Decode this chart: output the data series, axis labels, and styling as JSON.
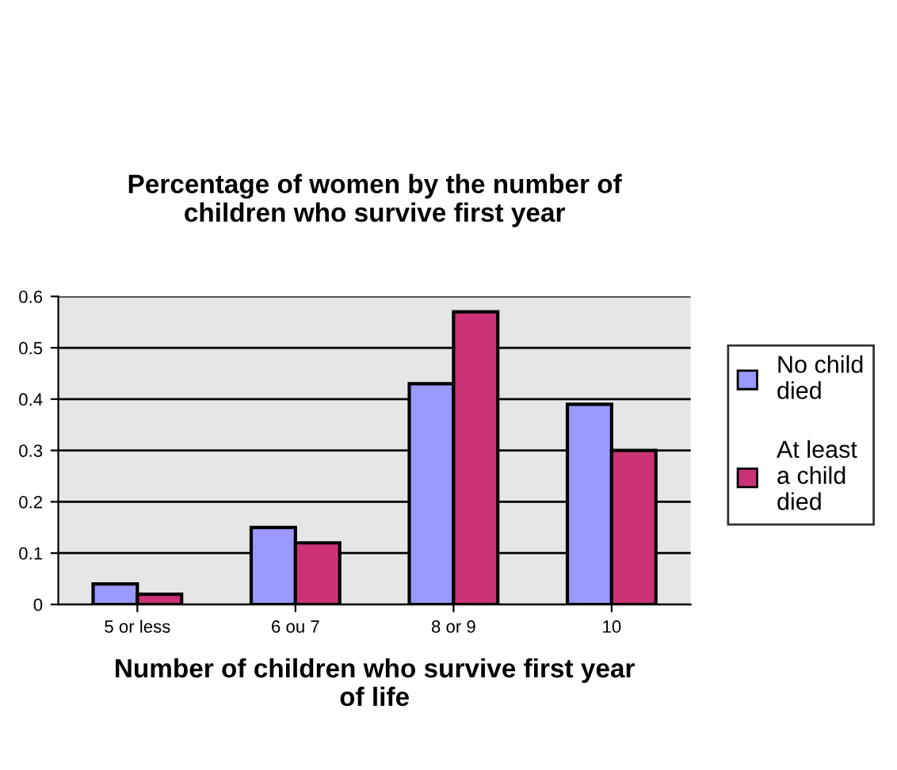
{
  "chart_data": {
    "type": "bar",
    "title": "Percentage of women by the number of\nchildren who survive first year",
    "xlabel": "Number of children who survive first year\nof life",
    "categories": [
      "5 or less",
      "6 ou 7",
      "8 or 9",
      "10"
    ],
    "series": [
      {
        "name": "No child\ndied",
        "color": "#9999ff",
        "values": [
          0.04,
          0.15,
          0.43,
          0.39
        ]
      },
      {
        "name": "At least\na child\ndied",
        "color": "#cc3377",
        "values": [
          0.02,
          0.12,
          0.57,
          0.3
        ]
      }
    ],
    "ylim": [
      0,
      0.6
    ],
    "yticks": [
      0,
      0.1,
      0.2,
      0.3,
      0.4,
      0.5,
      0.6
    ],
    "grid": "y",
    "legend": "right"
  }
}
